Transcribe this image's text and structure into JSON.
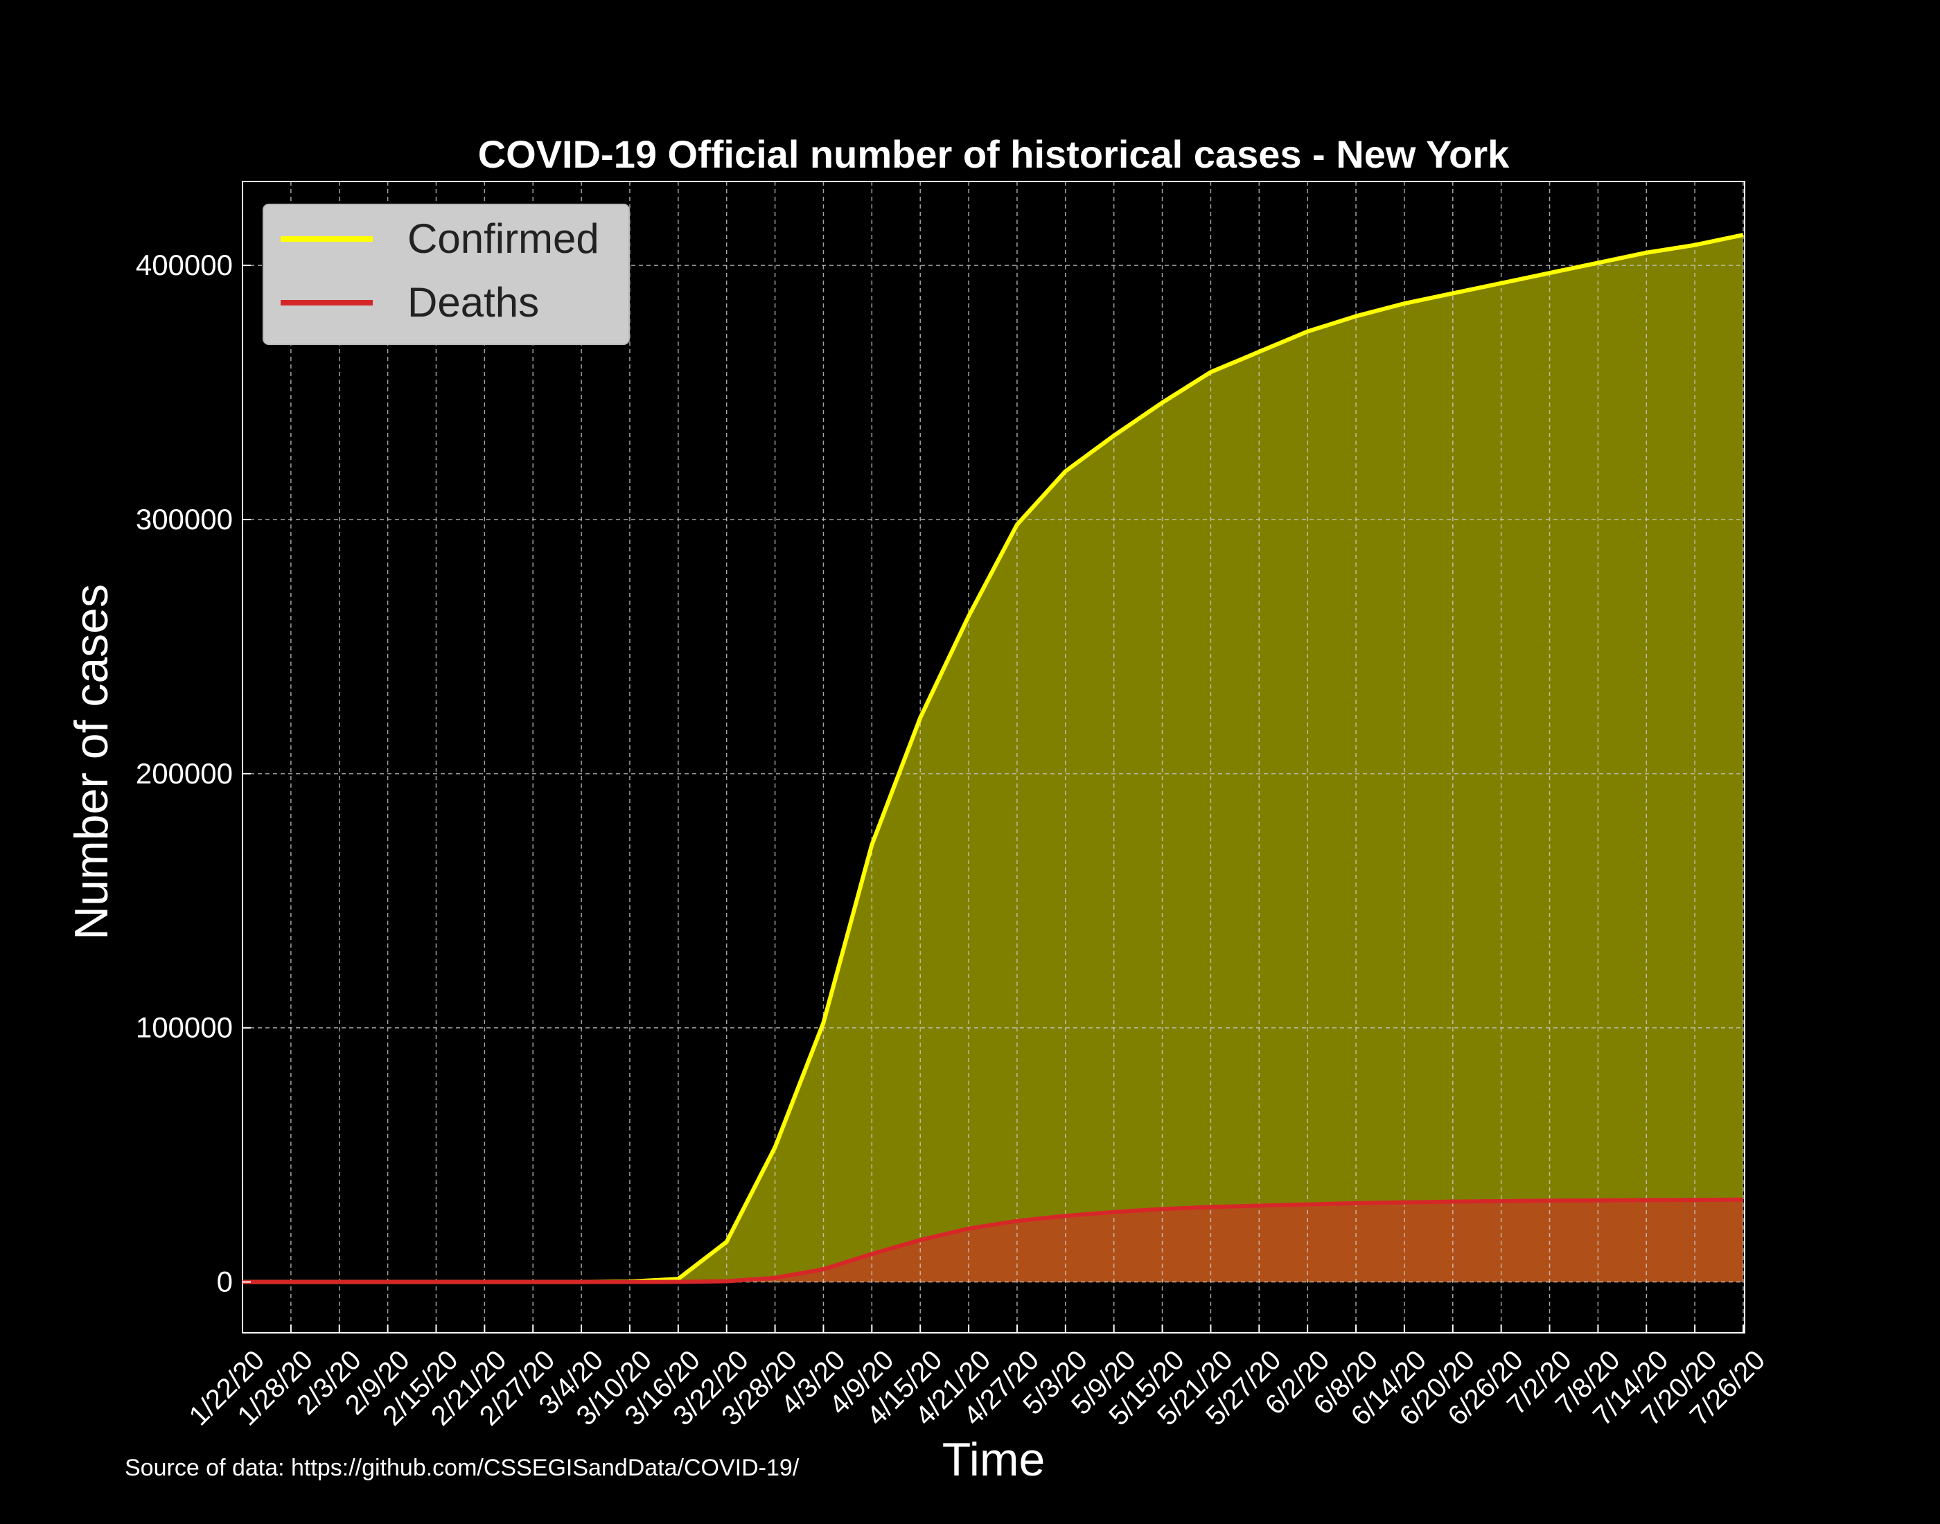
{
  "chart_data": {
    "type": "area",
    "title": "COVID-19 Official number of historical cases - New York",
    "xlabel": "Time",
    "ylabel": "Number of cases",
    "ylim": [
      -20000,
      433000
    ],
    "yticks": [
      0,
      100000,
      200000,
      300000,
      400000
    ],
    "grid": true,
    "legend_position": "top-left",
    "x": [
      "1/22/20",
      "1/28/20",
      "2/3/20",
      "2/9/20",
      "2/15/20",
      "2/21/20",
      "2/27/20",
      "3/4/20",
      "3/10/20",
      "3/16/20",
      "3/22/20",
      "3/28/20",
      "4/3/20",
      "4/9/20",
      "4/15/20",
      "4/21/20",
      "4/27/20",
      "5/3/20",
      "5/9/20",
      "5/15/20",
      "5/21/20",
      "5/27/20",
      "6/2/20",
      "6/8/20",
      "6/14/20",
      "6/20/20",
      "6/26/20",
      "7/2/20",
      "7/8/20",
      "7/14/20",
      "7/20/20",
      "7/26/20"
    ],
    "series": [
      {
        "name": "Confirmed",
        "color": "#ffff00",
        "fill": "#808000",
        "values": [
          0,
          0,
          0,
          0,
          0,
          0,
          0,
          0,
          173,
          1200,
          15800,
          53000,
          102000,
          172000,
          222000,
          262000,
          298000,
          319000,
          333000,
          346000,
          358000,
          366000,
          374000,
          380000,
          385000,
          389000,
          393000,
          397000,
          401000,
          405000,
          408000,
          412000
        ]
      },
      {
        "name": "Deaths",
        "color": "#d62728",
        "fill": "#b05018",
        "values": [
          0,
          0,
          0,
          0,
          0,
          0,
          0,
          0,
          0,
          20,
          300,
          1600,
          5000,
          11000,
          16500,
          21000,
          24000,
          26000,
          27500,
          28700,
          29500,
          30000,
          30500,
          31000,
          31300,
          31600,
          31800,
          32000,
          32100,
          32200,
          32300,
          32400
        ]
      }
    ]
  },
  "source_text": "Source of data: https://github.com/CSSEGISandData/COVID-19/"
}
